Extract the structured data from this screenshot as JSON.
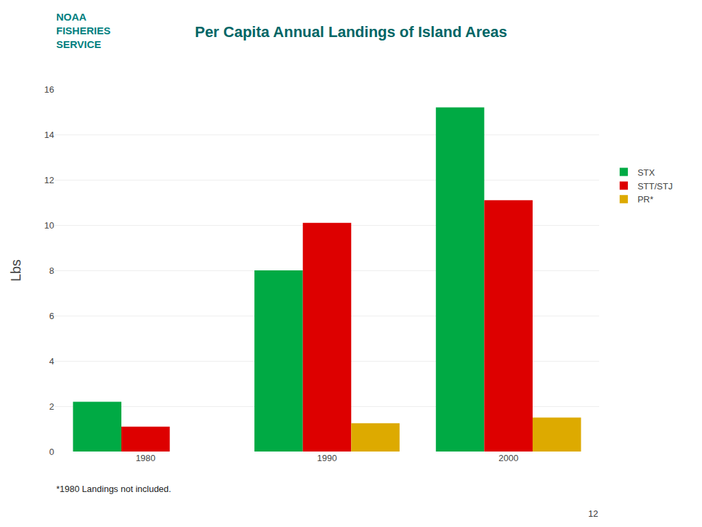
{
  "chart_data": {
    "type": "bar",
    "title": "Per Capita Annual Landings of Island Areas",
    "ylabel": "Lbs",
    "categories": [
      "1980",
      "1990",
      "2000"
    ],
    "series": [
      {
        "name": "STX",
        "color": "#00AA44",
        "values": [
          2.2,
          8.0,
          15.2
        ]
      },
      {
        "name": "STT/STJ",
        "color": "#DD0000",
        "values": [
          1.1,
          10.1,
          11.1
        ]
      },
      {
        "name": "PR*",
        "color": "#DDAA00",
        "values": [
          0,
          1.25,
          1.5
        ]
      }
    ],
    "ylim": [
      0,
      16
    ],
    "yticks": [
      0,
      2,
      4,
      6,
      8,
      10,
      12,
      14,
      16
    ],
    "grid": true,
    "legend": "right",
    "annotations": [
      "NOAA",
      "FISHERIES",
      "SERVICE",
      "*1980 Landings not included.",
      "12"
    ]
  }
}
